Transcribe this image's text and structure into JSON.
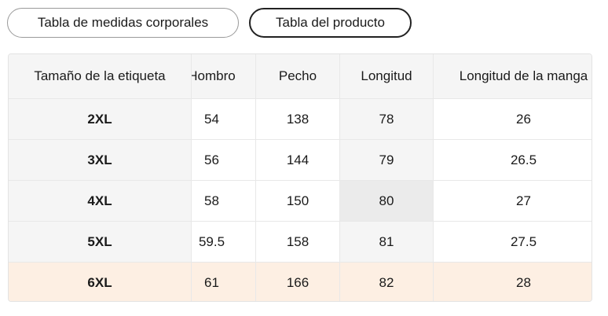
{
  "tabs": [
    "Tabla de medidas corporales",
    "Tabla del producto"
  ],
  "table": {
    "headers": [
      "Tamaño de la etiqueta",
      "Hombro",
      "Pecho",
      "Longitud",
      "Longitud de la manga"
    ],
    "rows": [
      [
        "2XL",
        "54",
        "138",
        "78",
        "26"
      ],
      [
        "3XL",
        "56",
        "144",
        "79",
        "26.5"
      ],
      [
        "4XL",
        "58",
        "150",
        "80",
        "27"
      ],
      [
        "5XL",
        "59.5",
        "158",
        "81",
        "27.5"
      ],
      [
        "6XL",
        "61",
        "166",
        "82",
        "28"
      ]
    ]
  }
}
